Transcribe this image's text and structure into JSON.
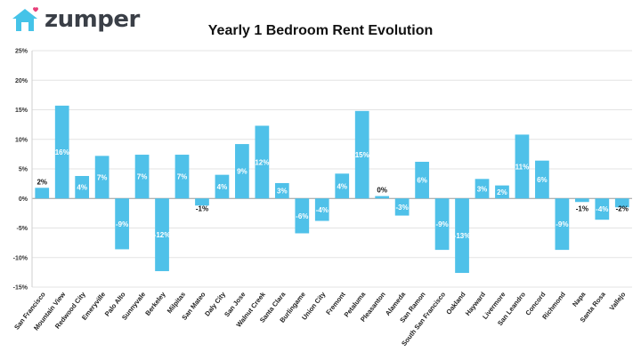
{
  "brand": {
    "name": "zumper",
    "icon": "house-heart-icon",
    "color": "#45c3e8",
    "heart_color": "#e8407a"
  },
  "chart_data": {
    "type": "bar",
    "title": "Yearly 1 Bedroom Rent Evolution",
    "xlabel": "",
    "ylabel": "",
    "ylim": [
      -15,
      25
    ],
    "yticks": [
      25,
      20,
      15,
      10,
      5,
      0,
      -5,
      -10,
      -15
    ],
    "ytick_labels": [
      "25%",
      "20%",
      "15%",
      "10%",
      "5%",
      "0%",
      "-5%",
      "-10%",
      "-15%"
    ],
    "grid": true,
    "bar_color": "#4fc1e9",
    "categories": [
      "San Francisco",
      "Mountain View",
      "Redwood City",
      "Emeryville",
      "Palo Alto",
      "Sunnyvale",
      "Berkeley",
      "Milpitas",
      "San Mateo",
      "Daly City",
      "San Jose",
      "Walnut Creek",
      "Santa Clara",
      "Burlingame",
      "Union City",
      "Fremont",
      "Petaluma",
      "Pleasanton",
      "Alameda",
      "San Ramon",
      "South San Francisco",
      "Oakland",
      "Hayward",
      "Livermore",
      "San Leandro",
      "Concord",
      "Richmond",
      "Napa",
      "Santa Rosa",
      "Vallejo"
    ],
    "values": [
      1.8,
      15.7,
      3.8,
      7.2,
      -8.6,
      7.4,
      -12.3,
      7.4,
      -1.2,
      4.0,
      9.2,
      12.3,
      2.6,
      -5.9,
      -3.8,
      4.2,
      14.8,
      0.4,
      -2.9,
      6.2,
      -8.7,
      -12.6,
      3.3,
      2.2,
      10.8,
      6.4,
      -8.7,
      -0.6,
      -3.6,
      -1.5
    ],
    "data_labels": [
      "2%",
      "16%",
      "4%",
      "7%",
      "-9%",
      "7%",
      "-12%",
      "7%",
      "-1%",
      "4%",
      "9%",
      "12%",
      "3%",
      "-6%",
      "-4%",
      "4%",
      "15%",
      "0%",
      "-3%",
      "6%",
      "-9%",
      "-13%",
      "3%",
      "2%",
      "11%",
      "6%",
      "-9%",
      "-1%",
      "-4%",
      "-2%"
    ]
  }
}
